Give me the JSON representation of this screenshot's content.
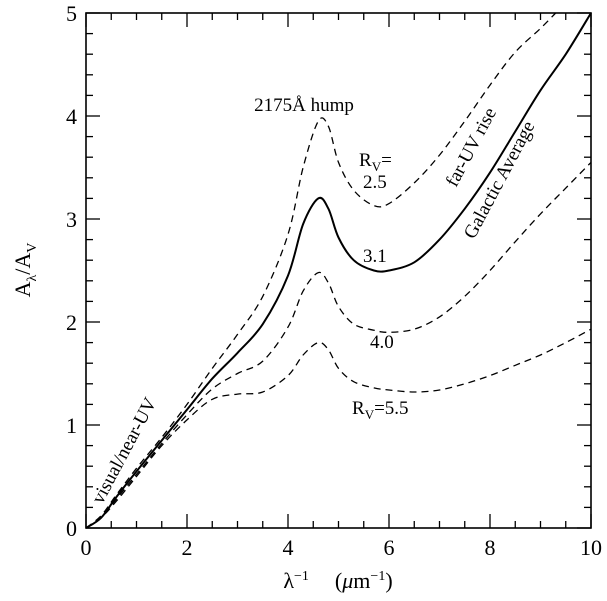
{
  "chart_data": {
    "type": "line",
    "title": "",
    "xlabel": "λ⁻¹   (μm⁻¹)",
    "ylabel": "Aλ/AV",
    "xlim": [
      0,
      10
    ],
    "ylim": [
      0,
      5
    ],
    "x_ticks": [
      "0",
      "2",
      "4",
      "6",
      "8",
      "10"
    ],
    "y_ticks": [
      "0",
      "1",
      "2",
      "3",
      "4",
      "5"
    ],
    "grid": false,
    "legend": "none",
    "series": [
      {
        "name": "2.5",
        "style": "dashed",
        "color": "#000000",
        "points": [
          [
            0,
            0
          ],
          [
            0.3,
            0.12
          ],
          [
            0.6,
            0.32
          ],
          [
            1.0,
            0.58
          ],
          [
            1.5,
            0.88
          ],
          [
            2.0,
            1.2
          ],
          [
            2.5,
            1.55
          ],
          [
            3.0,
            1.88
          ],
          [
            3.5,
            2.25
          ],
          [
            4.0,
            2.85
          ],
          [
            4.3,
            3.5
          ],
          [
            4.6,
            3.95
          ],
          [
            4.8,
            3.9
          ],
          [
            5.0,
            3.55
          ],
          [
            5.3,
            3.28
          ],
          [
            5.7,
            3.13
          ],
          [
            6.0,
            3.15
          ],
          [
            6.5,
            3.35
          ],
          [
            7.0,
            3.62
          ],
          [
            7.5,
            3.95
          ],
          [
            8.0,
            4.3
          ],
          [
            8.5,
            4.62
          ],
          [
            9.0,
            4.85
          ],
          [
            9.3,
            5.0
          ]
        ]
      },
      {
        "name": "3.1",
        "style": "solid",
        "color": "#000000",
        "points": [
          [
            0,
            0
          ],
          [
            0.3,
            0.1
          ],
          [
            0.6,
            0.3
          ],
          [
            1.0,
            0.55
          ],
          [
            1.5,
            0.85
          ],
          [
            2.0,
            1.15
          ],
          [
            2.5,
            1.45
          ],
          [
            3.0,
            1.7
          ],
          [
            3.5,
            1.98
          ],
          [
            4.0,
            2.45
          ],
          [
            4.3,
            2.95
          ],
          [
            4.6,
            3.2
          ],
          [
            4.8,
            3.1
          ],
          [
            5.0,
            2.82
          ],
          [
            5.3,
            2.6
          ],
          [
            5.7,
            2.5
          ],
          [
            6.0,
            2.5
          ],
          [
            6.5,
            2.58
          ],
          [
            7.0,
            2.8
          ],
          [
            7.5,
            3.1
          ],
          [
            8.0,
            3.45
          ],
          [
            8.5,
            3.85
          ],
          [
            9.0,
            4.25
          ],
          [
            9.5,
            4.6
          ],
          [
            10.0,
            5.0
          ]
        ]
      },
      {
        "name": "4.0",
        "style": "dashed",
        "color": "#000000",
        "points": [
          [
            0,
            0
          ],
          [
            0.3,
            0.1
          ],
          [
            0.6,
            0.28
          ],
          [
            1.0,
            0.52
          ],
          [
            1.5,
            0.82
          ],
          [
            2.0,
            1.1
          ],
          [
            2.5,
            1.35
          ],
          [
            3.0,
            1.5
          ],
          [
            3.5,
            1.62
          ],
          [
            4.0,
            1.95
          ],
          [
            4.3,
            2.3
          ],
          [
            4.6,
            2.48
          ],
          [
            4.8,
            2.38
          ],
          [
            5.0,
            2.15
          ],
          [
            5.3,
            1.98
          ],
          [
            5.7,
            1.92
          ],
          [
            6.0,
            1.9
          ],
          [
            6.5,
            1.93
          ],
          [
            7.0,
            2.05
          ],
          [
            7.5,
            2.25
          ],
          [
            8.0,
            2.5
          ],
          [
            8.5,
            2.78
          ],
          [
            9.0,
            3.05
          ],
          [
            9.5,
            3.3
          ],
          [
            10.0,
            3.55
          ]
        ]
      },
      {
        "name": "Rv=5.5",
        "style": "dashed",
        "color": "#000000",
        "points": [
          [
            0,
            0
          ],
          [
            0.3,
            0.1
          ],
          [
            0.6,
            0.26
          ],
          [
            1.0,
            0.5
          ],
          [
            1.5,
            0.8
          ],
          [
            2.0,
            1.05
          ],
          [
            2.5,
            1.25
          ],
          [
            3.0,
            1.3
          ],
          [
            3.5,
            1.32
          ],
          [
            4.0,
            1.48
          ],
          [
            4.3,
            1.68
          ],
          [
            4.6,
            1.8
          ],
          [
            4.8,
            1.73
          ],
          [
            5.0,
            1.55
          ],
          [
            5.3,
            1.42
          ],
          [
            5.7,
            1.36
          ],
          [
            6.0,
            1.34
          ],
          [
            6.5,
            1.32
          ],
          [
            7.0,
            1.34
          ],
          [
            7.5,
            1.4
          ],
          [
            8.0,
            1.48
          ],
          [
            8.5,
            1.58
          ],
          [
            9.0,
            1.68
          ],
          [
            9.5,
            1.8
          ],
          [
            10.0,
            1.93
          ]
        ]
      }
    ],
    "annotations": {
      "hump": "2175Å hump",
      "rv_label": "RV=",
      "label_25": "2.5",
      "label_31": "3.1",
      "label_40": "4.0",
      "label_55": "RV=5.5",
      "far_uv": "far-UV rise",
      "galactic": "Galactic Average",
      "visual": "visual/near-UV"
    }
  }
}
